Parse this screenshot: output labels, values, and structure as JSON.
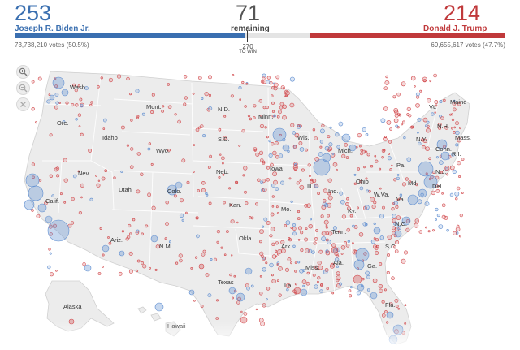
{
  "biden": {
    "electoral_votes": "253",
    "name": "Joseph R. Biden Jr.",
    "popular": "73,738,210 votes (50.5%)",
    "color": "#3a6fb0"
  },
  "trump": {
    "electoral_votes": "214",
    "name": "Donald J. Trump",
    "popular": "69,655,617 votes (47.7%)",
    "color": "#c0393b"
  },
  "remaining": {
    "count": "71",
    "label": "remaining"
  },
  "threshold": {
    "value": "270",
    "label": "TO WIN"
  },
  "progress": {
    "biden_ev": 253,
    "remaining_ev": 71,
    "trump_ev": 214,
    "total_ev": 538
  },
  "zoom_controls": {
    "icons": [
      "zoom-in-icon",
      "zoom-out-icon",
      "reset-icon"
    ]
  },
  "map": {
    "states": [
      {
        "key": "wa",
        "label": "Wash."
      },
      {
        "key": "or",
        "label": "Ore."
      },
      {
        "key": "id",
        "label": "Idaho"
      },
      {
        "key": "mt",
        "label": "Mont."
      },
      {
        "key": "wy",
        "label": "Wyo."
      },
      {
        "key": "nv",
        "label": "Nev."
      },
      {
        "key": "ca",
        "label": "Calif."
      },
      {
        "key": "ut",
        "label": "Utah"
      },
      {
        "key": "co",
        "label": "Colo."
      },
      {
        "key": "az",
        "label": "Ariz."
      },
      {
        "key": "nm",
        "label": "N.M."
      },
      {
        "key": "nd",
        "label": "N.D."
      },
      {
        "key": "sd",
        "label": "S.D."
      },
      {
        "key": "ne",
        "label": "Neb."
      },
      {
        "key": "ks",
        "label": "Kan."
      },
      {
        "key": "ok",
        "label": "Okla."
      },
      {
        "key": "tx",
        "label": "Texas"
      },
      {
        "key": "mn",
        "label": "Minn."
      },
      {
        "key": "ia",
        "label": "Iowa"
      },
      {
        "key": "mo",
        "label": "Mo."
      },
      {
        "key": "ar",
        "label": "Ark."
      },
      {
        "key": "la",
        "label": "La."
      },
      {
        "key": "wi",
        "label": "Wis."
      },
      {
        "key": "il",
        "label": "Ill."
      },
      {
        "key": "mi",
        "label": "Mich."
      },
      {
        "key": "in",
        "label": "Ind."
      },
      {
        "key": "oh",
        "label": "Ohio"
      },
      {
        "key": "ky",
        "label": "Ky."
      },
      {
        "key": "tn",
        "label": "Tenn."
      },
      {
        "key": "ms",
        "label": "Miss."
      },
      {
        "key": "al",
        "label": "Ala."
      },
      {
        "key": "ga",
        "label": "Ga."
      },
      {
        "key": "fl",
        "label": "Fla."
      },
      {
        "key": "sc",
        "label": "S.C."
      },
      {
        "key": "nc",
        "label": "N.C."
      },
      {
        "key": "va",
        "label": "Va."
      },
      {
        "key": "wv",
        "label": "W.Va."
      },
      {
        "key": "pa",
        "label": "Pa."
      },
      {
        "key": "ny",
        "label": "N.Y."
      },
      {
        "key": "me",
        "label": "Maine"
      },
      {
        "key": "vt",
        "label": "Vt."
      },
      {
        "key": "nh",
        "label": "N.H."
      },
      {
        "key": "ma",
        "label": "Mass."
      },
      {
        "key": "ct",
        "label": "Conn."
      },
      {
        "key": "ri",
        "label": "R.I."
      },
      {
        "key": "nj",
        "label": "N.J."
      },
      {
        "key": "de",
        "label": "Del."
      },
      {
        "key": "md",
        "label": "Md."
      },
      {
        "key": "ak",
        "label": "Alaska"
      },
      {
        "key": "hi",
        "label": "Hawaii"
      }
    ]
  }
}
